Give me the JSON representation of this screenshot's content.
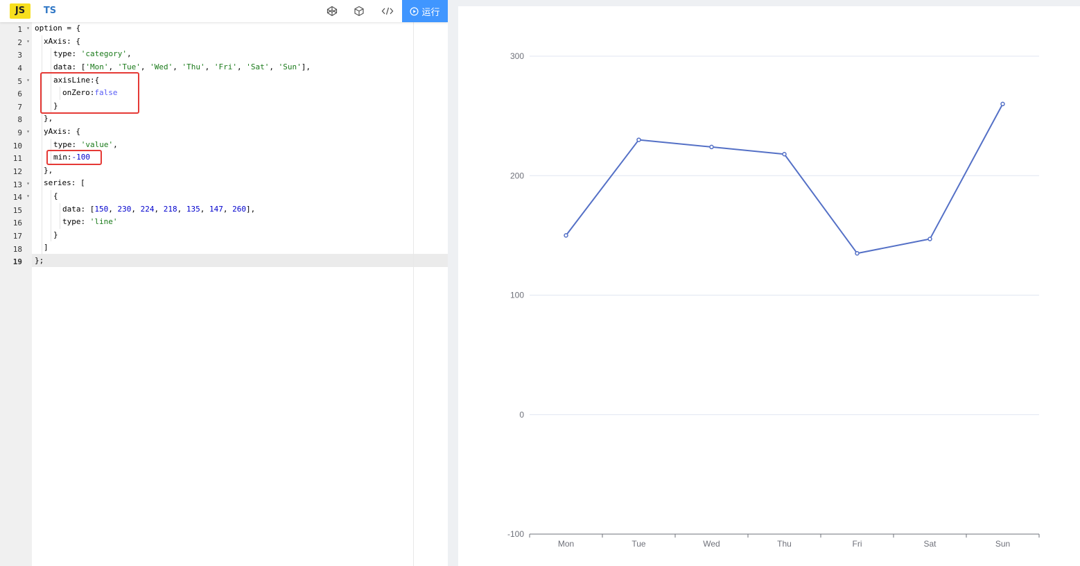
{
  "toolbar": {
    "tabs": [
      {
        "label": "JS",
        "active": true
      },
      {
        "label": "TS",
        "active": false
      }
    ],
    "icons": [
      "codepen-icon",
      "codesandbox-icon",
      "code-icon"
    ],
    "run_label": "运行"
  },
  "editor": {
    "line_numbers": [
      "1",
      "2",
      "3",
      "4",
      "5",
      "6",
      "7",
      "8",
      "9",
      "10",
      "11",
      "12",
      "13",
      "14",
      "15",
      "16",
      "17",
      "18",
      "19"
    ],
    "active_line": "19"
  },
  "code": {
    "l1": {
      "a": "option = {"
    },
    "l2": {
      "a": "xAxis: {"
    },
    "l3": {
      "a": "type: ",
      "b": "'category'",
      "c": ","
    },
    "l4": {
      "a": "data: [",
      "s1": "'Mon'",
      "s2": "'Tue'",
      "s3": "'Wed'",
      "s4": "'Thu'",
      "s5": "'Fri'",
      "s6": "'Sat'",
      "s7": "'Sun'",
      "c": "],"
    },
    "l5": {
      "a": "axisLine:{"
    },
    "l6": {
      "a": "onZero:",
      "b": "false"
    },
    "l7": {
      "a": "}"
    },
    "l8": {
      "a": "},"
    },
    "l9": {
      "a": "yAxis: {"
    },
    "l10": {
      "a": "type: ",
      "b": "'value'",
      "c": ","
    },
    "l11": {
      "a": "min:",
      "b": "-100"
    },
    "l12": {
      "a": "},"
    },
    "l13": {
      "a": "series: ["
    },
    "l14": {
      "a": "{"
    },
    "l15": {
      "a": "data: [",
      "n1": "150",
      "n2": "230",
      "n3": "224",
      "n4": "218",
      "n5": "135",
      "n6": "147",
      "n7": "260",
      "c": "],"
    },
    "l16": {
      "a": "type: ",
      "b": "'line'"
    },
    "l17": {
      "a": "}"
    },
    "l18": {
      "a": "]"
    },
    "l19": {
      "a": "};"
    }
  },
  "colors": {
    "line": "#5470c6",
    "highlight_box": "#e53935",
    "run_button": "#4096ff",
    "js_tab": "#f7df1e"
  },
  "chart_data": {
    "type": "line",
    "categories": [
      "Mon",
      "Tue",
      "Wed",
      "Thu",
      "Fri",
      "Sat",
      "Sun"
    ],
    "values": [
      150,
      230,
      224,
      218,
      135,
      147,
      260
    ],
    "ylim": [
      -100,
      300
    ],
    "yticks": [
      "300",
      "200",
      "100",
      "0",
      "-100"
    ],
    "ytick_values": [
      300,
      200,
      100,
      0,
      -100
    ],
    "grid": true,
    "x_axis_at": -100
  }
}
